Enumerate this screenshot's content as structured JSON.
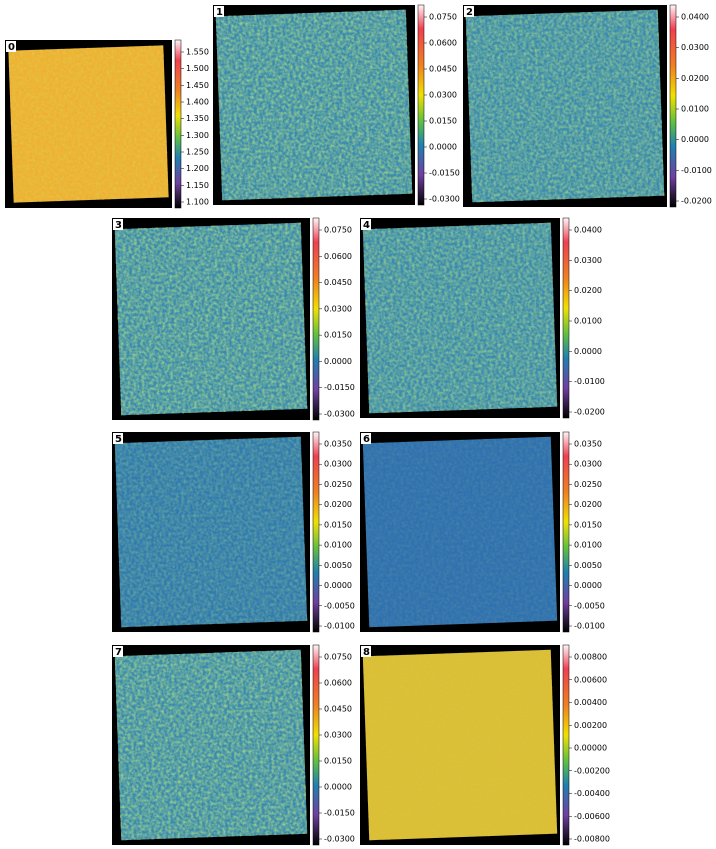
{
  "panels": [
    {
      "label": "0",
      "ticks": [
        "1.550",
        "1.500",
        "1.450",
        "1.400",
        "1.350",
        "1.300",
        "1.250",
        "1.200",
        "1.150",
        "1.100"
      ]
    },
    {
      "label": "1",
      "ticks": [
        "0.0750",
        "0.0600",
        "0.0450",
        "0.0300",
        "0.0150",
        "0.0000",
        "-0.0150",
        "-0.0300"
      ]
    },
    {
      "label": "2",
      "ticks": [
        "0.0400",
        "0.0300",
        "0.0200",
        "0.0100",
        "0.0000",
        "-0.0100",
        "-0.0200"
      ]
    },
    {
      "label": "3",
      "ticks": [
        "0.0750",
        "0.0600",
        "0.0450",
        "0.0300",
        "0.0150",
        "0.0000",
        "-0.0150",
        "-0.0300"
      ]
    },
    {
      "label": "4",
      "ticks": [
        "0.0400",
        "0.0300",
        "0.0200",
        "0.0100",
        "0.0000",
        "-0.0100",
        "-0.0200"
      ]
    },
    {
      "label": "5",
      "ticks": [
        "0.0350",
        "0.0300",
        "0.0250",
        "0.0200",
        "0.0150",
        "0.0100",
        "0.0050",
        "0.0000",
        "-0.0050",
        "-0.0100"
      ]
    },
    {
      "label": "6",
      "ticks": [
        "0.0350",
        "0.0300",
        "0.0250",
        "0.0200",
        "0.0150",
        "0.0100",
        "0.0050",
        "0.0000",
        "-0.0050",
        "-0.0100"
      ]
    },
    {
      "label": "7",
      "ticks": [
        "0.0750",
        "0.0600",
        "0.0450",
        "0.0300",
        "0.0150",
        "0.0000",
        "-0.0150",
        "-0.0300"
      ]
    },
    {
      "label": "8",
      "ticks": [
        "0.00800",
        "0.00600",
        "0.00400",
        "0.00200",
        "0.00000",
        "-0.00200",
        "-0.00400",
        "-0.00600",
        "-0.00800"
      ]
    }
  ]
}
